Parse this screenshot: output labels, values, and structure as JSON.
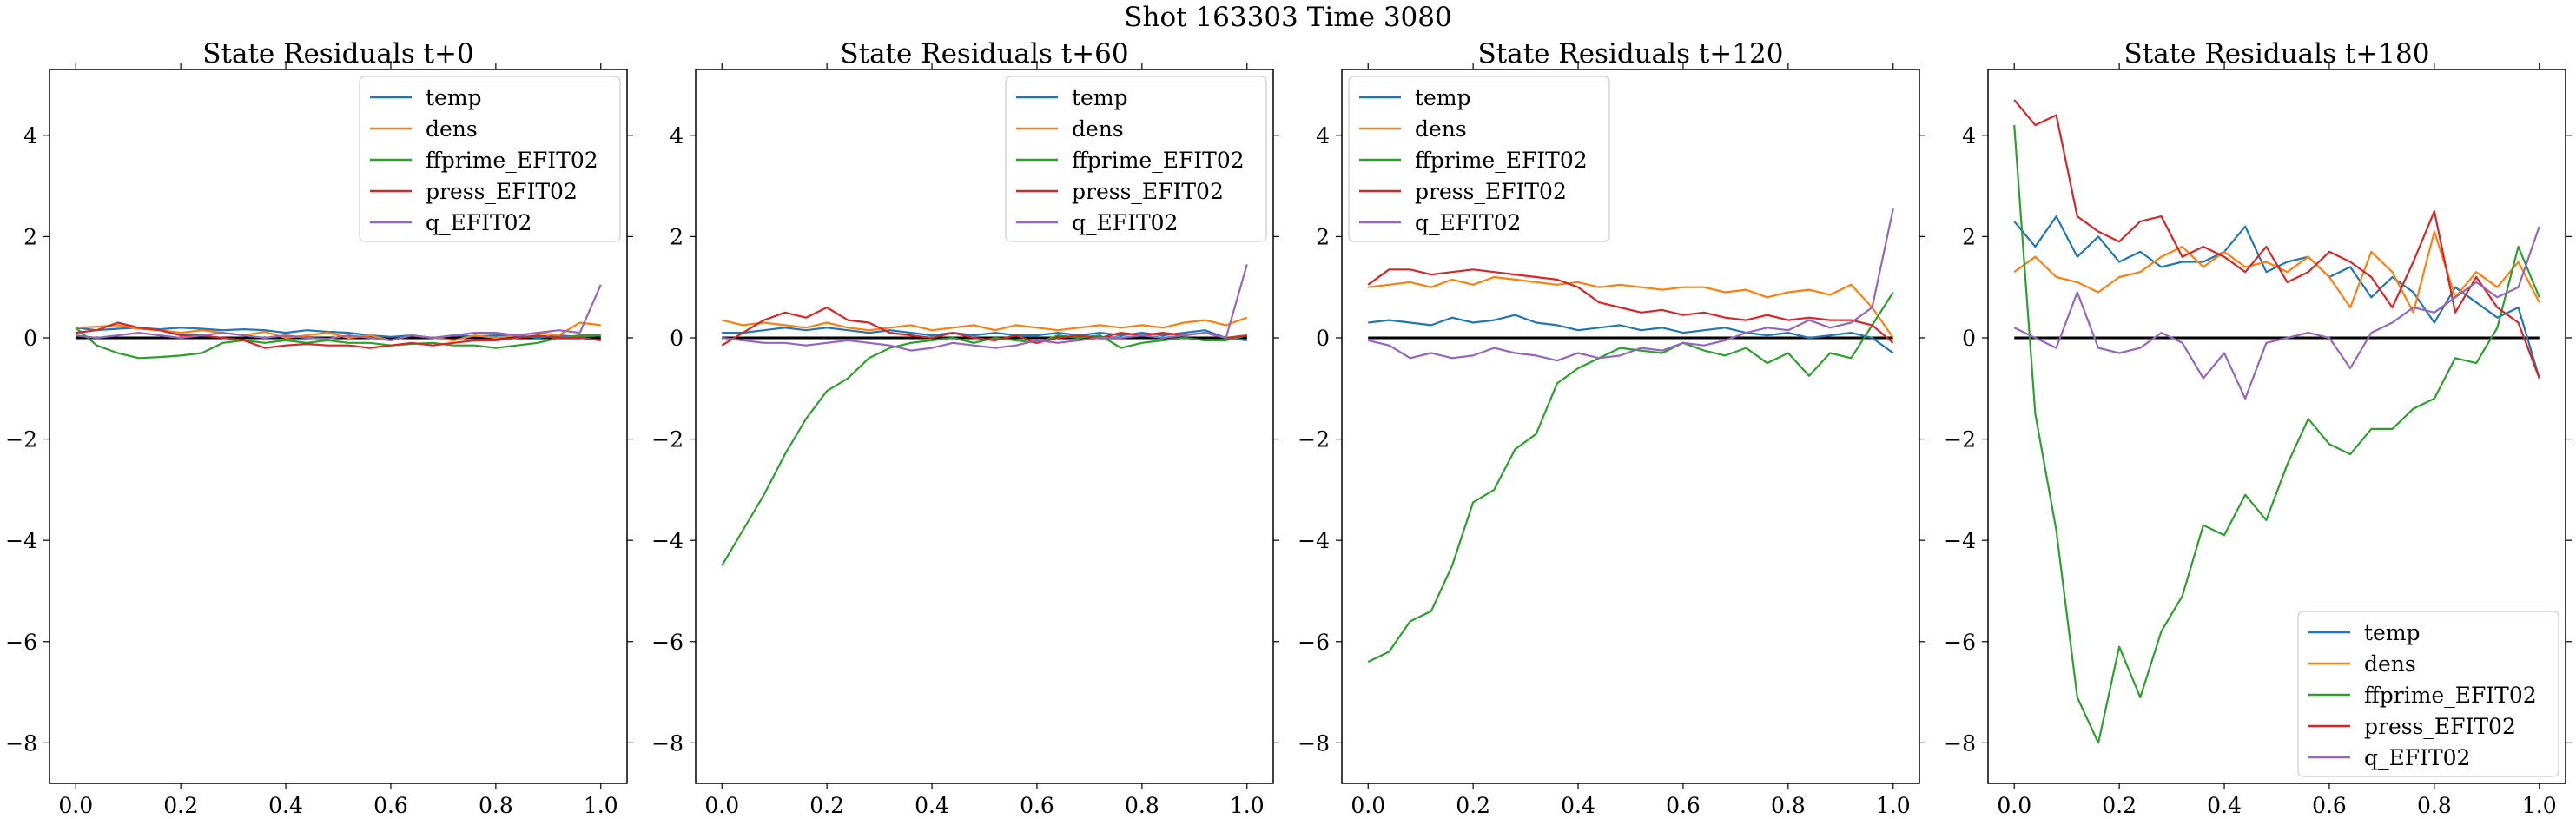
{
  "figure": {
    "suptitle": "Shot 163303   Time 3080"
  },
  "colors": {
    "temp": "#1f77b4",
    "dens": "#ff7f0e",
    "ffprime_EFIT02": "#2ca02c",
    "press_EFIT02": "#d62728",
    "q_EFIT02": "#9467bd",
    "zero_line": "#000000"
  },
  "chart_data": [
    {
      "type": "line",
      "title": "State Residuals t+0",
      "xlabel": "",
      "ylabel": "",
      "xlim": [
        -0.05,
        1.05
      ],
      "ylim": [
        -8.8,
        5.3
      ],
      "xticks": [
        "0.0",
        "0.2",
        "0.4",
        "0.6",
        "0.8",
        "1.0"
      ],
      "yticks": [
        "4",
        "2",
        "0",
        "−2",
        "−4",
        "−6",
        "−8"
      ],
      "grid": false,
      "legend": "upper right",
      "zero_line": true,
      "x": [
        0,
        0.04,
        0.08,
        0.12,
        0.16,
        0.2,
        0.24,
        0.28,
        0.32,
        0.36,
        0.4,
        0.44,
        0.48,
        0.52,
        0.56,
        0.6,
        0.64,
        0.68,
        0.72,
        0.76,
        0.8,
        0.84,
        0.88,
        0.92,
        0.96,
        1.0
      ],
      "series": [
        {
          "name": "temp",
          "values": [
            0.2,
            0.15,
            0.18,
            0.2,
            0.17,
            0.2,
            0.18,
            0.15,
            0.17,
            0.15,
            0.1,
            0.15,
            0.12,
            0.1,
            0.05,
            0.02,
            0.05,
            0.0,
            0.05,
            0.03,
            0.05,
            0.05,
            0.0,
            0.05,
            0.02,
            0.05
          ]
        },
        {
          "name": "dens",
          "values": [
            0.2,
            0.22,
            0.25,
            0.18,
            0.15,
            0.1,
            0.15,
            0.1,
            0.05,
            0.12,
            0.0,
            0.05,
            0.1,
            0.0,
            0.05,
            -0.05,
            0.05,
            0.0,
            -0.05,
            0.05,
            0.0,
            0.05,
            0.1,
            0.05,
            0.3,
            0.25
          ]
        },
        {
          "name": "ffprime_EFIT02",
          "values": [
            0.2,
            -0.15,
            -0.3,
            -0.4,
            -0.38,
            -0.35,
            -0.3,
            -0.1,
            -0.05,
            -0.1,
            -0.05,
            -0.1,
            -0.05,
            -0.1,
            -0.1,
            -0.15,
            -0.12,
            -0.1,
            -0.15,
            -0.15,
            -0.2,
            -0.15,
            -0.1,
            0.0,
            0.05,
            0.05
          ]
        },
        {
          "name": "press_EFIT02",
          "values": [
            0.1,
            0.15,
            0.3,
            0.2,
            0.15,
            0.05,
            0.05,
            0.0,
            -0.05,
            -0.2,
            -0.15,
            -0.12,
            -0.15,
            -0.15,
            -0.2,
            -0.15,
            -0.1,
            -0.15,
            -0.1,
            -0.05,
            -0.05,
            0.0,
            0.05,
            0.0,
            0.0,
            -0.05
          ]
        },
        {
          "name": "q_EFIT02",
          "values": [
            0.05,
            0.0,
            0.05,
            0.1,
            0.05,
            0.0,
            0.05,
            0.1,
            0.05,
            0.0,
            0.05,
            0.0,
            -0.02,
            0.05,
            0.0,
            -0.05,
            0.05,
            0.0,
            0.05,
            0.1,
            0.1,
            0.05,
            0.1,
            0.15,
            0.1,
            1.05
          ]
        }
      ]
    },
    {
      "type": "line",
      "title": "State Residuals t+60",
      "xlabel": "",
      "ylabel": "",
      "xlim": [
        -0.05,
        1.05
      ],
      "ylim": [
        -8.8,
        5.3
      ],
      "xticks": [
        "0.0",
        "0.2",
        "0.4",
        "0.6",
        "0.8",
        "1.0"
      ],
      "yticks": [
        "4",
        "2",
        "0",
        "−2",
        "−4",
        "−6",
        "−8"
      ],
      "grid": false,
      "legend": "upper right",
      "zero_line": true,
      "x": [
        0,
        0.04,
        0.08,
        0.12,
        0.16,
        0.2,
        0.24,
        0.28,
        0.32,
        0.36,
        0.4,
        0.44,
        0.48,
        0.52,
        0.56,
        0.6,
        0.64,
        0.68,
        0.72,
        0.76,
        0.8,
        0.84,
        0.88,
        0.92,
        0.96,
        1.0
      ],
      "series": [
        {
          "name": "temp",
          "values": [
            0.1,
            0.1,
            0.15,
            0.2,
            0.15,
            0.2,
            0.15,
            0.1,
            0.15,
            0.1,
            0.05,
            0.1,
            0.05,
            0.1,
            0.05,
            0.05,
            0.1,
            0.05,
            0.1,
            0.05,
            0.1,
            0.05,
            0.1,
            0.15,
            0.0,
            -0.05
          ]
        },
        {
          "name": "dens",
          "values": [
            0.35,
            0.25,
            0.3,
            0.25,
            0.2,
            0.3,
            0.2,
            0.15,
            0.2,
            0.25,
            0.15,
            0.2,
            0.25,
            0.15,
            0.25,
            0.2,
            0.15,
            0.2,
            0.25,
            0.2,
            0.25,
            0.2,
            0.3,
            0.35,
            0.25,
            0.4
          ]
        },
        {
          "name": "ffprime_EFIT02",
          "values": [
            -4.5,
            -3.8,
            -3.1,
            -2.3,
            -1.6,
            -1.05,
            -0.8,
            -0.4,
            -0.2,
            -0.1,
            -0.05,
            0.0,
            -0.1,
            0.0,
            -0.05,
            -0.1,
            0.05,
            0.0,
            0.05,
            -0.2,
            -0.1,
            -0.05,
            0.0,
            -0.05,
            -0.05,
            0.05
          ]
        },
        {
          "name": "press_EFIT02",
          "values": [
            -0.15,
            0.1,
            0.35,
            0.5,
            0.4,
            0.6,
            0.35,
            0.3,
            0.1,
            0.05,
            0.0,
            0.1,
            0.0,
            -0.05,
            0.05,
            -0.1,
            0.0,
            0.05,
            0.0,
            0.1,
            0.05,
            0.1,
            0.05,
            0.1,
            0.0,
            0.05
          ]
        },
        {
          "name": "q_EFIT02",
          "values": [
            0.0,
            -0.05,
            -0.1,
            -0.1,
            -0.15,
            -0.1,
            -0.05,
            -0.1,
            -0.15,
            -0.25,
            -0.2,
            -0.1,
            -0.15,
            -0.2,
            -0.15,
            -0.05,
            -0.1,
            -0.05,
            0.0,
            0.0,
            0.05,
            0.0,
            0.05,
            0.1,
            0.0,
            1.45
          ]
        }
      ]
    },
    {
      "type": "line",
      "title": "State Residuals t+120",
      "xlabel": "",
      "ylabel": "",
      "xlim": [
        -0.05,
        1.05
      ],
      "ylim": [
        -8.8,
        5.3
      ],
      "xticks": [
        "0.0",
        "0.2",
        "0.4",
        "0.6",
        "0.8",
        "1.0"
      ],
      "yticks": [
        "4",
        "2",
        "0",
        "−2",
        "−4",
        "−6",
        "−8"
      ],
      "grid": false,
      "legend": "upper left",
      "zero_line": true,
      "x": [
        0,
        0.04,
        0.08,
        0.12,
        0.16,
        0.2,
        0.24,
        0.28,
        0.32,
        0.36,
        0.4,
        0.44,
        0.48,
        0.52,
        0.56,
        0.6,
        0.64,
        0.68,
        0.72,
        0.76,
        0.8,
        0.84,
        0.88,
        0.92,
        0.96,
        1.0
      ],
      "series": [
        {
          "name": "temp",
          "values": [
            0.3,
            0.35,
            0.3,
            0.25,
            0.4,
            0.3,
            0.35,
            0.45,
            0.3,
            0.25,
            0.15,
            0.2,
            0.25,
            0.15,
            0.2,
            0.1,
            0.15,
            0.2,
            0.1,
            0.05,
            0.1,
            0.0,
            0.05,
            0.1,
            0.0,
            -0.3
          ]
        },
        {
          "name": "dens",
          "values": [
            1.0,
            1.05,
            1.1,
            1.0,
            1.15,
            1.05,
            1.2,
            1.15,
            1.1,
            1.05,
            1.1,
            1.0,
            1.05,
            1.0,
            0.95,
            1.0,
            1.0,
            0.9,
            0.95,
            0.8,
            0.9,
            0.95,
            0.85,
            1.05,
            0.6,
            0.0
          ]
        },
        {
          "name": "ffprime_EFIT02",
          "values": [
            -6.4,
            -6.2,
            -5.6,
            -5.4,
            -4.5,
            -3.25,
            -3.0,
            -2.2,
            -1.9,
            -0.9,
            -0.6,
            -0.4,
            -0.2,
            -0.25,
            -0.3,
            -0.1,
            -0.25,
            -0.35,
            -0.2,
            -0.5,
            -0.3,
            -0.75,
            -0.3,
            -0.4,
            0.25,
            0.9
          ]
        },
        {
          "name": "press_EFIT02",
          "values": [
            1.05,
            1.35,
            1.35,
            1.25,
            1.3,
            1.35,
            1.3,
            1.25,
            1.2,
            1.15,
            1.0,
            0.7,
            0.6,
            0.5,
            0.55,
            0.45,
            0.5,
            0.4,
            0.35,
            0.45,
            0.35,
            0.4,
            0.35,
            0.35,
            0.25,
            -0.1
          ]
        },
        {
          "name": "q_EFIT02",
          "values": [
            -0.05,
            -0.15,
            -0.4,
            -0.3,
            -0.4,
            -0.35,
            -0.2,
            -0.3,
            -0.35,
            -0.45,
            -0.3,
            -0.4,
            -0.35,
            -0.2,
            -0.25,
            -0.1,
            -0.15,
            -0.05,
            0.1,
            0.2,
            0.15,
            0.35,
            0.2,
            0.3,
            0.6,
            2.55
          ]
        }
      ]
    },
    {
      "type": "line",
      "title": "State Residuals t+180",
      "xlabel": "",
      "ylabel": "",
      "xlim": [
        -0.05,
        1.05
      ],
      "ylim": [
        -8.8,
        5.3
      ],
      "xticks": [
        "0.0",
        "0.2",
        "0.4",
        "0.6",
        "0.8",
        "1.0"
      ],
      "yticks": [
        "4",
        "2",
        "0",
        "−2",
        "−4",
        "−6",
        "−8"
      ],
      "grid": false,
      "legend": "lower right",
      "zero_line": true,
      "x": [
        0,
        0.04,
        0.08,
        0.12,
        0.16,
        0.2,
        0.24,
        0.28,
        0.32,
        0.36,
        0.4,
        0.44,
        0.48,
        0.52,
        0.56,
        0.6,
        0.64,
        0.68,
        0.72,
        0.76,
        0.8,
        0.84,
        0.88,
        0.92,
        0.96,
        1.0
      ],
      "series": [
        {
          "name": "temp",
          "values": [
            2.3,
            1.8,
            2.4,
            1.6,
            2.0,
            1.5,
            1.7,
            1.4,
            1.5,
            1.5,
            1.7,
            2.2,
            1.3,
            1.5,
            1.6,
            1.2,
            1.4,
            0.8,
            1.2,
            0.9,
            0.3,
            1.0,
            0.7,
            0.4,
            0.6,
            -0.8
          ]
        },
        {
          "name": "dens",
          "values": [
            1.3,
            1.6,
            1.2,
            1.1,
            0.9,
            1.2,
            1.3,
            1.6,
            1.8,
            1.4,
            1.7,
            1.4,
            1.5,
            1.3,
            1.6,
            1.2,
            0.6,
            1.7,
            1.3,
            0.5,
            2.1,
            0.8,
            1.3,
            1.0,
            1.5,
            0.7
          ]
        },
        {
          "name": "ffprime_EFIT02",
          "values": [
            4.2,
            -1.5,
            -3.8,
            -7.1,
            -8.0,
            -6.1,
            -7.1,
            -5.8,
            -5.1,
            -3.7,
            -3.9,
            -3.1,
            -3.6,
            -2.5,
            -1.6,
            -2.1,
            -2.3,
            -1.8,
            -1.8,
            -1.4,
            -1.2,
            -0.4,
            -0.5,
            0.2,
            1.8,
            0.8
          ]
        },
        {
          "name": "press_EFIT02",
          "values": [
            4.7,
            4.2,
            4.4,
            2.4,
            2.1,
            1.9,
            2.3,
            2.4,
            1.6,
            1.8,
            1.6,
            1.3,
            1.8,
            1.1,
            1.3,
            1.7,
            1.5,
            1.2,
            0.6,
            1.5,
            2.5,
            0.5,
            1.2,
            0.6,
            0.3,
            -0.8
          ]
        },
        {
          "name": "q_EFIT02",
          "values": [
            0.2,
            0.0,
            -0.2,
            0.9,
            -0.2,
            -0.3,
            -0.2,
            0.1,
            -0.1,
            -0.8,
            -0.3,
            -1.2,
            -0.1,
            0.0,
            0.1,
            0.0,
            -0.6,
            0.1,
            0.3,
            0.6,
            0.5,
            0.8,
            1.1,
            0.8,
            1.0,
            2.2
          ]
        }
      ]
    }
  ]
}
